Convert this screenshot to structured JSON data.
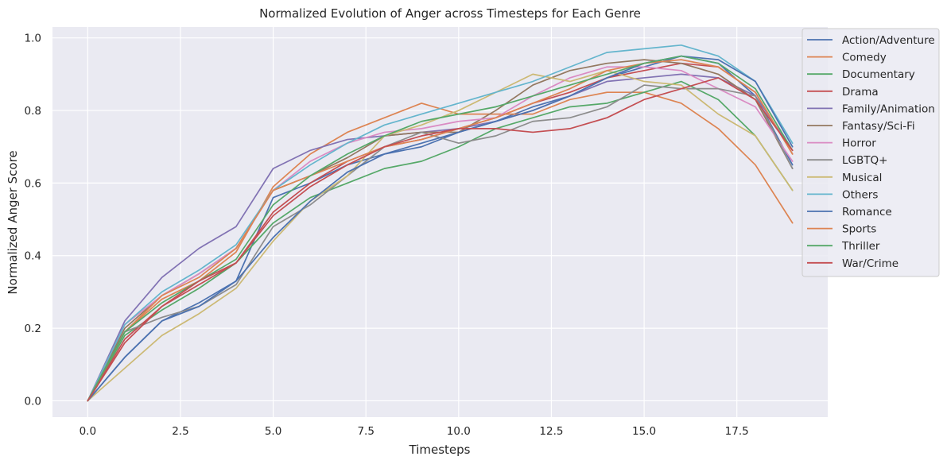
{
  "chart_data": {
    "type": "line",
    "title": "Normalized Evolution of Anger across Timesteps for Each Genre",
    "xlabel": "Timesteps",
    "ylabel": "Normalized Anger Score",
    "xlim": [
      -0.95,
      19.95
    ],
    "ylim": [
      -0.045,
      1.03
    ],
    "xticks": [
      0.0,
      2.5,
      5.0,
      7.5,
      10.0,
      12.5,
      15.0,
      17.5
    ],
    "xtick_labels": [
      "0.0",
      "2.5",
      "5.0",
      "7.5",
      "10.0",
      "12.5",
      "15.0",
      "17.5"
    ],
    "yticks": [
      0.0,
      0.2,
      0.4,
      0.6,
      0.8,
      1.0
    ],
    "ytick_labels": [
      "0.0",
      "0.2",
      "0.4",
      "0.6",
      "0.8",
      "1.0"
    ],
    "grid": true,
    "background": "#eaeaf2",
    "legend_placement": "outside-right-top",
    "x": [
      0,
      1,
      2,
      3,
      4,
      5,
      6,
      7,
      8,
      9,
      10,
      11,
      12,
      13,
      14,
      15,
      16,
      17,
      18,
      19
    ],
    "series": [
      {
        "name": "Action/Adventure",
        "color": "#4c72b0",
        "values": [
          0,
          0.12,
          0.22,
          0.27,
          0.33,
          0.56,
          0.6,
          0.65,
          0.68,
          0.7,
          0.74,
          0.77,
          0.81,
          0.84,
          0.89,
          0.92,
          0.95,
          0.93,
          0.84,
          0.65
        ]
      },
      {
        "name": "Comedy",
        "color": "#dd8452",
        "values": [
          0,
          0.19,
          0.28,
          0.33,
          0.41,
          0.59,
          0.68,
          0.74,
          0.78,
          0.82,
          0.79,
          0.79,
          0.79,
          0.83,
          0.85,
          0.85,
          0.82,
          0.75,
          0.65,
          0.49
        ]
      },
      {
        "name": "Documentary",
        "color": "#55a868",
        "values": [
          0,
          0.18,
          0.25,
          0.31,
          0.38,
          0.49,
          0.56,
          0.6,
          0.64,
          0.66,
          0.7,
          0.75,
          0.78,
          0.81,
          0.82,
          0.85,
          0.88,
          0.83,
          0.73,
          0.58
        ]
      },
      {
        "name": "Drama",
        "color": "#c44e52",
        "values": [
          0,
          0.17,
          0.26,
          0.32,
          0.38,
          0.52,
          0.6,
          0.66,
          0.7,
          0.72,
          0.75,
          0.78,
          0.82,
          0.85,
          0.89,
          0.91,
          0.93,
          0.92,
          0.85,
          0.68
        ]
      },
      {
        "name": "Family/Animation",
        "color": "#8172b3",
        "values": [
          0,
          0.22,
          0.34,
          0.42,
          0.48,
          0.64,
          0.69,
          0.72,
          0.73,
          0.74,
          0.75,
          0.77,
          0.8,
          0.84,
          0.88,
          0.89,
          0.9,
          0.89,
          0.84,
          0.69
        ]
      },
      {
        "name": "Fantasy/Sci-Fi",
        "color": "#937860",
        "values": [
          0,
          0.2,
          0.29,
          0.35,
          0.42,
          0.58,
          0.62,
          0.67,
          0.73,
          0.74,
          0.74,
          0.8,
          0.87,
          0.91,
          0.93,
          0.94,
          0.93,
          0.9,
          0.83,
          0.64
        ]
      },
      {
        "name": "Horror",
        "color": "#da8bc3",
        "values": [
          0,
          0.21,
          0.29,
          0.35,
          0.42,
          0.58,
          0.66,
          0.71,
          0.74,
          0.75,
          0.77,
          0.78,
          0.84,
          0.89,
          0.92,
          0.92,
          0.91,
          0.86,
          0.81,
          0.66
        ]
      },
      {
        "name": "LGBTQ+",
        "color": "#8c8c8c",
        "values": [
          0,
          0.19,
          0.23,
          0.26,
          0.32,
          0.48,
          0.54,
          0.62,
          0.7,
          0.74,
          0.71,
          0.73,
          0.77,
          0.78,
          0.81,
          0.87,
          0.86,
          0.86,
          0.84,
          0.64
        ]
      },
      {
        "name": "Musical",
        "color": "#ccb974",
        "values": [
          0,
          0.09,
          0.18,
          0.24,
          0.31,
          0.44,
          0.55,
          0.62,
          0.73,
          0.76,
          0.8,
          0.85,
          0.9,
          0.88,
          0.91,
          0.88,
          0.87,
          0.79,
          0.73,
          0.58
        ]
      },
      {
        "name": "Others",
        "color": "#64b5cd",
        "values": [
          0,
          0.21,
          0.3,
          0.36,
          0.43,
          0.58,
          0.65,
          0.71,
          0.76,
          0.79,
          0.82,
          0.85,
          0.88,
          0.92,
          0.96,
          0.97,
          0.98,
          0.95,
          0.88,
          0.71
        ]
      },
      {
        "name": "Romance",
        "color": "#4c72b0",
        "values": [
          0,
          0.12,
          0.22,
          0.26,
          0.33,
          0.45,
          0.55,
          0.63,
          0.68,
          0.71,
          0.74,
          0.77,
          0.8,
          0.84,
          0.89,
          0.93,
          0.95,
          0.94,
          0.88,
          0.7
        ]
      },
      {
        "name": "Sports",
        "color": "#dd8452",
        "values": [
          0,
          0.19,
          0.29,
          0.34,
          0.42,
          0.58,
          0.62,
          0.66,
          0.7,
          0.72,
          0.75,
          0.78,
          0.82,
          0.86,
          0.91,
          0.93,
          0.94,
          0.92,
          0.85,
          0.68
        ]
      },
      {
        "name": "Thriller",
        "color": "#55a868",
        "values": [
          0,
          0.19,
          0.27,
          0.33,
          0.39,
          0.54,
          0.62,
          0.68,
          0.73,
          0.77,
          0.79,
          0.81,
          0.84,
          0.87,
          0.9,
          0.93,
          0.95,
          0.93,
          0.86,
          0.69
        ]
      },
      {
        "name": "War/Crime",
        "color": "#c44e52",
        "values": [
          0,
          0.16,
          0.26,
          0.33,
          0.38,
          0.51,
          0.59,
          0.65,
          0.7,
          0.73,
          0.75,
          0.75,
          0.74,
          0.75,
          0.78,
          0.83,
          0.86,
          0.89,
          0.83,
          0.69
        ]
      }
    ]
  }
}
